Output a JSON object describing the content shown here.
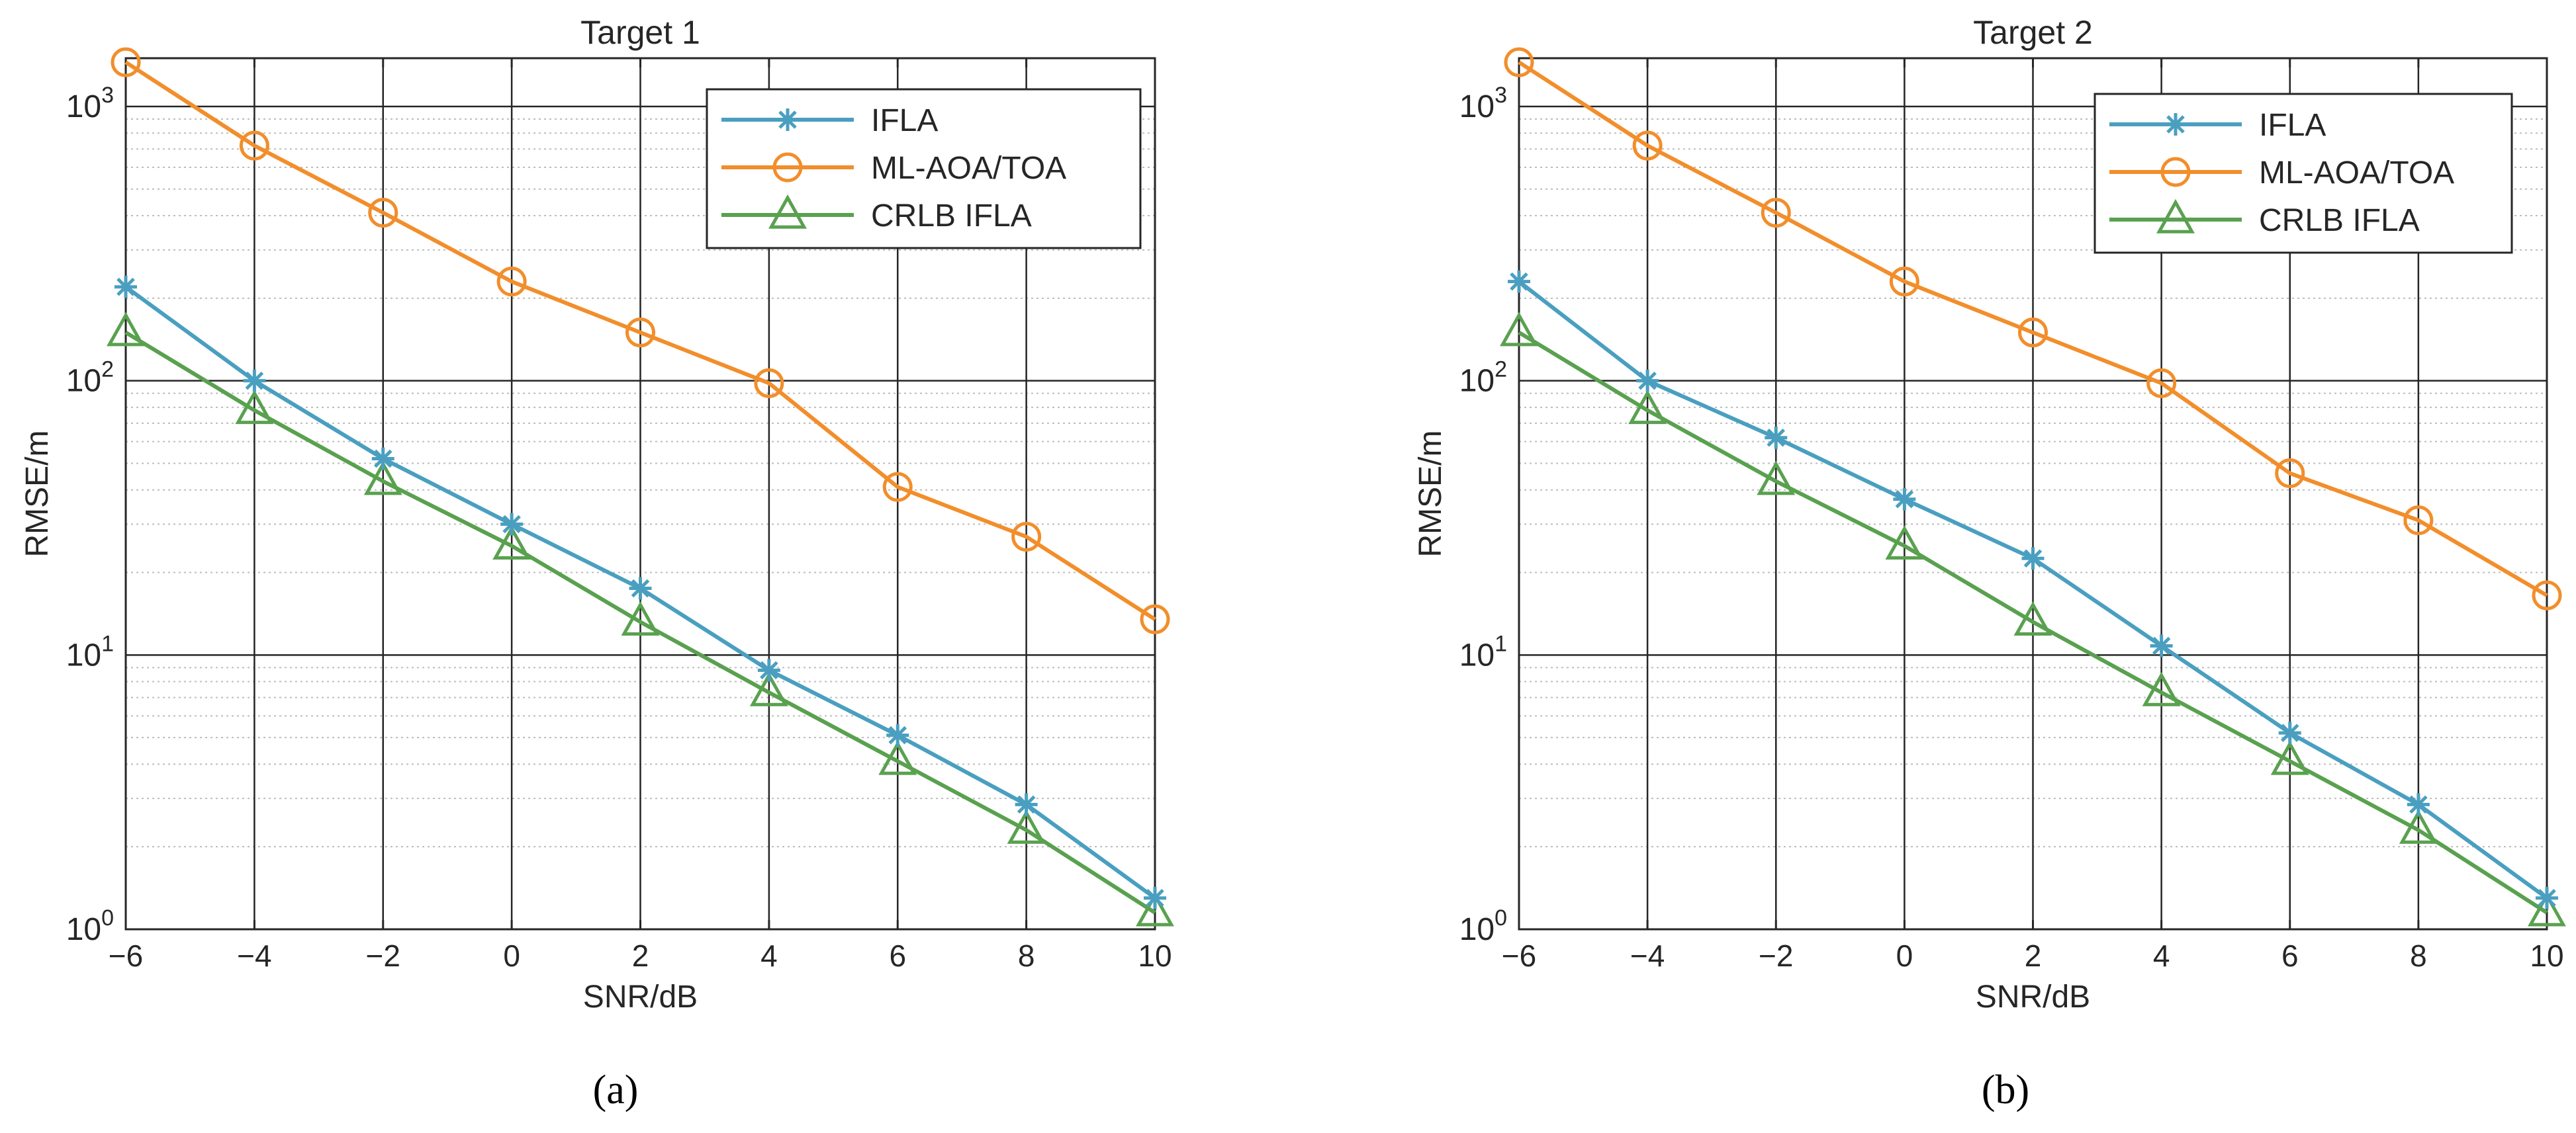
{
  "chart_data": [
    {
      "type": "line",
      "title": "Target 1",
      "xlabel": "SNR/dB",
      "ylabel": "RMSE/m",
      "yscale": "log",
      "xlim": [
        -6,
        10
      ],
      "ylim": [
        1,
        1500
      ],
      "grid": true,
      "legend_position": "top-right",
      "caption": "(a)",
      "x": [
        -6,
        -4,
        -2,
        0,
        2,
        4,
        6,
        8,
        10
      ],
      "x_ticks": [
        "−6",
        "−4",
        "−2",
        "0",
        "2",
        "4",
        "6",
        "8",
        "10"
      ],
      "y_ticks": [
        {
          "value": 1,
          "base": "10",
          "exp": "0"
        },
        {
          "value": 10,
          "base": "10",
          "exp": "1"
        },
        {
          "value": 100,
          "base": "10",
          "exp": "2"
        },
        {
          "value": 1000,
          "base": "10",
          "exp": "3"
        }
      ],
      "series": [
        {
          "name": "IFLA",
          "color": "#4a9fc0",
          "marker": "asterisk",
          "values": [
            220,
            100,
            52,
            30,
            17.5,
            8.8,
            5.1,
            2.85,
            1.3
          ]
        },
        {
          "name": "ML-AOA/TOA",
          "color": "#f28e2b",
          "marker": "circle",
          "values": [
            1450,
            720,
            410,
            230,
            150,
            98,
            41,
            27,
            13.5
          ]
        },
        {
          "name": "CRLB IFLA",
          "color": "#59a14f",
          "marker": "triangle",
          "values": [
            150,
            78,
            43,
            25,
            13.2,
            7.3,
            4.1,
            2.3,
            1.15
          ]
        }
      ]
    },
    {
      "type": "line",
      "title": "Target 2",
      "xlabel": "SNR/dB",
      "ylabel": "RMSE/m",
      "yscale": "log",
      "xlim": [
        -6,
        10
      ],
      "ylim": [
        1,
        1500
      ],
      "grid": true,
      "legend_position": "top-right",
      "caption": "(b)",
      "x": [
        -6,
        -4,
        -2,
        0,
        2,
        4,
        6,
        8,
        10
      ],
      "x_ticks": [
        "−6",
        "−4",
        "−2",
        "0",
        "2",
        "4",
        "6",
        "8",
        "10"
      ],
      "y_ticks": [
        {
          "value": 1,
          "base": "10",
          "exp": "0"
        },
        {
          "value": 10,
          "base": "10",
          "exp": "1"
        },
        {
          "value": 100,
          "base": "10",
          "exp": "2"
        },
        {
          "value": 1000,
          "base": "10",
          "exp": "3"
        }
      ],
      "series": [
        {
          "name": "IFLA",
          "color": "#4a9fc0",
          "marker": "asterisk",
          "values": [
            230,
            100,
            62,
            37,
            22.5,
            10.8,
            5.2,
            2.85,
            1.3
          ]
        },
        {
          "name": "ML-AOA/TOA",
          "color": "#f28e2b",
          "marker": "circle",
          "values": [
            1450,
            720,
            410,
            230,
            150,
            98,
            46,
            31,
            16.5
          ]
        },
        {
          "name": "CRLB IFLA",
          "color": "#59a14f",
          "marker": "triangle",
          "values": [
            150,
            78,
            43,
            25,
            13.2,
            7.3,
            4.1,
            2.3,
            1.15
          ]
        }
      ]
    }
  ]
}
